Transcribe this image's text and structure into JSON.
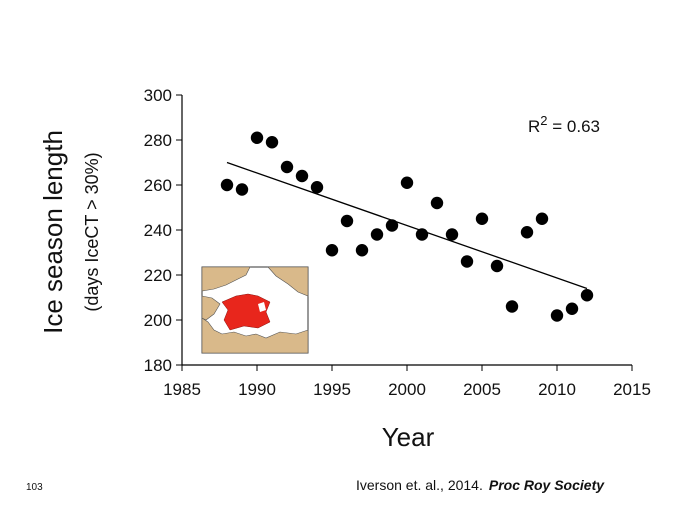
{
  "chart_data": {
    "type": "scatter",
    "title": "",
    "xlabel": "Year",
    "ylabel": "Ice season length",
    "ylabel_sub": "(days IceCT > 30%)",
    "xlim": [
      1985,
      2015
    ],
    "ylim": [
      180,
      300
    ],
    "x_ticks": [
      "1985",
      "1990",
      "1995",
      "2000",
      "2005",
      "2010",
      "2015"
    ],
    "y_ticks": [
      "180",
      "200",
      "220",
      "240",
      "260",
      "280",
      "300"
    ],
    "points": [
      {
        "x": 1988,
        "y": 260
      },
      {
        "x": 1989,
        "y": 258
      },
      {
        "x": 1990,
        "y": 281
      },
      {
        "x": 1991,
        "y": 279
      },
      {
        "x": 1992,
        "y": 268
      },
      {
        "x": 1993,
        "y": 264
      },
      {
        "x": 1994,
        "y": 259
      },
      {
        "x": 1995,
        "y": 231
      },
      {
        "x": 1996,
        "y": 244
      },
      {
        "x": 1997,
        "y": 231
      },
      {
        "x": 1998,
        "y": 238
      },
      {
        "x": 1999,
        "y": 242
      },
      {
        "x": 2000,
        "y": 261
      },
      {
        "x": 2001,
        "y": 238
      },
      {
        "x": 2002,
        "y": 252
      },
      {
        "x": 2003,
        "y": 238
      },
      {
        "x": 2004,
        "y": 226
      },
      {
        "x": 2005,
        "y": 245
      },
      {
        "x": 2006,
        "y": 224
      },
      {
        "x": 2007,
        "y": 206
      },
      {
        "x": 2008,
        "y": 239
      },
      {
        "x": 2009,
        "y": 245
      },
      {
        "x": 2010,
        "y": 202
      },
      {
        "x": 2011,
        "y": 205
      },
      {
        "x": 2012,
        "y": 211
      }
    ],
    "trendline": {
      "x": [
        1988,
        2012
      ],
      "y": [
        270,
        214
      ]
    },
    "annotation": {
      "label": "R",
      "superscript": "2",
      "value": " = 0.63"
    },
    "grid": false,
    "colors": {
      "points": "#000000",
      "map_land": "#d9b98a",
      "map_region": "#e8261c"
    }
  },
  "slide_number": "103",
  "citation": {
    "authors": "Iverson et. al., 2014.",
    "journal": "Proc Roy Society"
  }
}
